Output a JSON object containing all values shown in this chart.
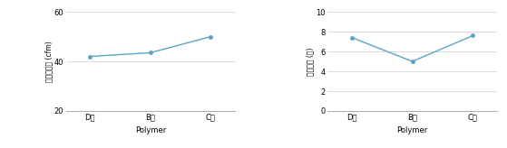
{
  "chart1": {
    "x_labels": [
      "D사",
      "B사",
      "C사"
    ],
    "y_values": [
      42,
      43.5,
      50
    ],
    "ylabel": "공기투과도 (cfm)",
    "xlabel": "Polymer",
    "ylim": [
      20,
      60
    ],
    "yticks": [
      20,
      40,
      60
    ],
    "line_color": "#5BA3C9",
    "marker": "o",
    "markersize": 3
  },
  "chart2": {
    "x_labels": [
      "D사",
      "B사",
      "C사"
    ],
    "y_values": [
      7.4,
      5.0,
      7.6
    ],
    "ylabel": "섬유직경 (㎛)",
    "xlabel": "Polymer",
    "ylim": [
      0,
      10
    ],
    "yticks": [
      0,
      2,
      4,
      6,
      8,
      10
    ],
    "line_color": "#5BA3C9",
    "marker": "o",
    "markersize": 3
  },
  "background_color": "#ffffff",
  "font_size_label": 6,
  "font_size_tick": 6,
  "font_size_ylabel": 5.5
}
